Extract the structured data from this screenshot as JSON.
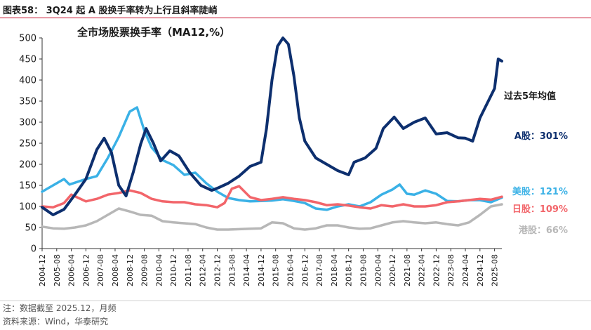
{
  "header": {
    "figure_title": "图表58：  3Q24 起 A 股换手率转为上行且斜率陡峭"
  },
  "footer": {
    "note": "注：数据截至 2025.12，月频",
    "source": "资料来源：Wind，华泰研究"
  },
  "colors": {
    "a_share": "#0d2f6e",
    "us": "#3ab1e6",
    "japan": "#f2656a",
    "hk": "#b7b7b7",
    "title_rule": "#c8102e"
  },
  "chart_data": {
    "type": "line",
    "title": "全市场股票换手率（MA12,%）",
    "xlabel": "",
    "ylabel": "",
    "ylim": [
      0,
      500
    ],
    "yticks": [
      0,
      50,
      100,
      150,
      200,
      250,
      300,
      350,
      400,
      450,
      500
    ],
    "x_start": "2004-12",
    "x_end": "2025-12",
    "xticks": [
      "2004-12",
      "2005-08",
      "2006-04",
      "2006-12",
      "2007-08",
      "2008-04",
      "2008-12",
      "2009-08",
      "2010-04",
      "2010-12",
      "2011-08",
      "2012-04",
      "2012-12",
      "2013-08",
      "2014-04",
      "2014-12",
      "2015-08",
      "2016-04",
      "2016-12",
      "2017-08",
      "2018-04",
      "2018-12",
      "2019-08",
      "2020-04",
      "2020-12",
      "2021-08",
      "2022-04",
      "2022-12",
      "2023-08",
      "2024-04",
      "2024-12",
      "2025-08"
    ],
    "grid": false,
    "legend_header": "过去5年均值",
    "series": [
      {
        "name": "A股",
        "key": "a_share",
        "label": "A股：301%",
        "legend_position": "right-upper",
        "points": [
          [
            "2004-12",
            98
          ],
          [
            "2005-06",
            80
          ],
          [
            "2005-12",
            93
          ],
          [
            "2006-06",
            128
          ],
          [
            "2006-12",
            165
          ],
          [
            "2007-06",
            235
          ],
          [
            "2007-10",
            262
          ],
          [
            "2008-02",
            228
          ],
          [
            "2008-06",
            150
          ],
          [
            "2008-10",
            125
          ],
          [
            "2009-02",
            182
          ],
          [
            "2009-06",
            248
          ],
          [
            "2009-09",
            285
          ],
          [
            "2010-01",
            250
          ],
          [
            "2010-05",
            208
          ],
          [
            "2010-10",
            232
          ],
          [
            "2011-03",
            220
          ],
          [
            "2011-09",
            180
          ],
          [
            "2012-03",
            150
          ],
          [
            "2012-09",
            138
          ],
          [
            "2013-01",
            145
          ],
          [
            "2013-06",
            155
          ],
          [
            "2013-12",
            172
          ],
          [
            "2014-06",
            195
          ],
          [
            "2014-12",
            205
          ],
          [
            "2015-03",
            285
          ],
          [
            "2015-06",
            400
          ],
          [
            "2015-09",
            480
          ],
          [
            "2015-12",
            500
          ],
          [
            "2016-03",
            485
          ],
          [
            "2016-06",
            410
          ],
          [
            "2016-09",
            310
          ],
          [
            "2016-12",
            255
          ],
          [
            "2017-06",
            215
          ],
          [
            "2017-12",
            200
          ],
          [
            "2018-06",
            185
          ],
          [
            "2018-12",
            175
          ],
          [
            "2019-03",
            205
          ],
          [
            "2019-09",
            215
          ],
          [
            "2020-03",
            238
          ],
          [
            "2020-07",
            285
          ],
          [
            "2021-01",
            312
          ],
          [
            "2021-06",
            285
          ],
          [
            "2021-12",
            300
          ],
          [
            "2022-06",
            310
          ],
          [
            "2022-12",
            272
          ],
          [
            "2023-06",
            275
          ],
          [
            "2023-12",
            263
          ],
          [
            "2024-04",
            262
          ],
          [
            "2024-08",
            255
          ],
          [
            "2024-12",
            310
          ],
          [
            "2025-04",
            345
          ],
          [
            "2025-08",
            380
          ],
          [
            "2025-10",
            450
          ],
          [
            "2025-12",
            445
          ]
        ]
      },
      {
        "name": "美股",
        "key": "us",
        "label": "美股：121%",
        "legend_position": "right-middle",
        "points": [
          [
            "2004-12",
            135
          ],
          [
            "2005-06",
            150
          ],
          [
            "2005-12",
            165
          ],
          [
            "2006-03",
            152
          ],
          [
            "2006-12",
            165
          ],
          [
            "2007-06",
            172
          ],
          [
            "2007-12",
            215
          ],
          [
            "2008-06",
            265
          ],
          [
            "2008-12",
            325
          ],
          [
            "2009-04",
            335
          ],
          [
            "2009-08",
            280
          ],
          [
            "2009-12",
            240
          ],
          [
            "2010-06",
            210
          ],
          [
            "2010-12",
            198
          ],
          [
            "2011-06",
            175
          ],
          [
            "2011-12",
            180
          ],
          [
            "2012-06",
            155
          ],
          [
            "2012-12",
            135
          ],
          [
            "2013-06",
            120
          ],
          [
            "2013-12",
            115
          ],
          [
            "2014-06",
            112
          ],
          [
            "2014-12",
            113
          ],
          [
            "2015-06",
            114
          ],
          [
            "2015-12",
            117
          ],
          [
            "2016-06",
            113
          ],
          [
            "2016-12",
            108
          ],
          [
            "2017-06",
            95
          ],
          [
            "2017-12",
            92
          ],
          [
            "2018-06",
            100
          ],
          [
            "2018-12",
            105
          ],
          [
            "2019-06",
            100
          ],
          [
            "2019-12",
            110
          ],
          [
            "2020-06",
            128
          ],
          [
            "2020-12",
            140
          ],
          [
            "2021-04",
            152
          ],
          [
            "2021-08",
            130
          ],
          [
            "2021-12",
            128
          ],
          [
            "2022-06",
            138
          ],
          [
            "2022-12",
            130
          ],
          [
            "2023-06",
            113
          ],
          [
            "2023-12",
            112
          ],
          [
            "2024-06",
            115
          ],
          [
            "2024-12",
            115
          ],
          [
            "2025-06",
            110
          ],
          [
            "2025-12",
            121
          ]
        ]
      },
      {
        "name": "日股",
        "key": "japan",
        "label": "日股：109%",
        "legend_position": "right-middle",
        "points": [
          [
            "2004-12",
            100
          ],
          [
            "2005-06",
            98
          ],
          [
            "2005-12",
            108
          ],
          [
            "2006-04",
            128
          ],
          [
            "2006-08",
            120
          ],
          [
            "2006-12",
            112
          ],
          [
            "2007-06",
            118
          ],
          [
            "2007-12",
            128
          ],
          [
            "2008-06",
            132
          ],
          [
            "2008-12",
            138
          ],
          [
            "2009-06",
            132
          ],
          [
            "2009-12",
            118
          ],
          [
            "2010-06",
            112
          ],
          [
            "2010-12",
            110
          ],
          [
            "2011-06",
            110
          ],
          [
            "2011-12",
            105
          ],
          [
            "2012-06",
            103
          ],
          [
            "2012-12",
            98
          ],
          [
            "2013-04",
            108
          ],
          [
            "2013-08",
            142
          ],
          [
            "2013-12",
            148
          ],
          [
            "2014-06",
            122
          ],
          [
            "2014-12",
            115
          ],
          [
            "2015-06",
            118
          ],
          [
            "2015-12",
            122
          ],
          [
            "2016-06",
            118
          ],
          [
            "2016-12",
            115
          ],
          [
            "2017-06",
            110
          ],
          [
            "2017-12",
            103
          ],
          [
            "2018-06",
            105
          ],
          [
            "2018-12",
            102
          ],
          [
            "2019-06",
            98
          ],
          [
            "2019-12",
            95
          ],
          [
            "2020-06",
            103
          ],
          [
            "2020-12",
            100
          ],
          [
            "2021-06",
            105
          ],
          [
            "2021-12",
            100
          ],
          [
            "2022-06",
            100
          ],
          [
            "2022-12",
            103
          ],
          [
            "2023-06",
            110
          ],
          [
            "2023-12",
            112
          ],
          [
            "2024-06",
            115
          ],
          [
            "2024-12",
            118
          ],
          [
            "2025-06",
            116
          ],
          [
            "2025-12",
            123
          ]
        ]
      },
      {
        "name": "港股",
        "key": "hk",
        "label": "港股：66%",
        "legend_position": "right-lower",
        "points": [
          [
            "2004-12",
            52
          ],
          [
            "2005-06",
            48
          ],
          [
            "2005-12",
            47
          ],
          [
            "2006-06",
            50
          ],
          [
            "2006-12",
            55
          ],
          [
            "2007-06",
            65
          ],
          [
            "2007-12",
            80
          ],
          [
            "2008-06",
            95
          ],
          [
            "2008-12",
            88
          ],
          [
            "2009-06",
            80
          ],
          [
            "2009-12",
            78
          ],
          [
            "2010-06",
            65
          ],
          [
            "2010-12",
            62
          ],
          [
            "2011-06",
            60
          ],
          [
            "2011-12",
            58
          ],
          [
            "2012-06",
            50
          ],
          [
            "2012-12",
            45
          ],
          [
            "2013-06",
            45
          ],
          [
            "2013-12",
            46
          ],
          [
            "2014-06",
            47
          ],
          [
            "2014-12",
            48
          ],
          [
            "2015-06",
            62
          ],
          [
            "2015-12",
            60
          ],
          [
            "2016-06",
            48
          ],
          [
            "2016-12",
            45
          ],
          [
            "2017-06",
            48
          ],
          [
            "2017-12",
            55
          ],
          [
            "2018-06",
            55
          ],
          [
            "2018-12",
            50
          ],
          [
            "2019-06",
            47
          ],
          [
            "2019-12",
            48
          ],
          [
            "2020-06",
            55
          ],
          [
            "2020-12",
            62
          ],
          [
            "2021-06",
            65
          ],
          [
            "2021-12",
            62
          ],
          [
            "2022-06",
            60
          ],
          [
            "2022-12",
            62
          ],
          [
            "2023-06",
            58
          ],
          [
            "2023-12",
            55
          ],
          [
            "2024-06",
            62
          ],
          [
            "2024-12",
            80
          ],
          [
            "2025-06",
            100
          ],
          [
            "2025-12",
            105
          ]
        ]
      }
    ]
  }
}
